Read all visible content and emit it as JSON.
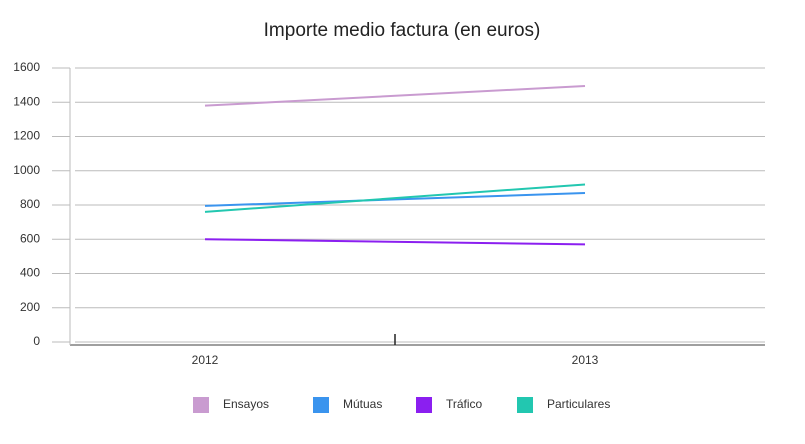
{
  "chart_data": {
    "type": "line",
    "title": "Importe medio factura (en euros)",
    "categories": [
      "2012",
      "2013"
    ],
    "series": [
      {
        "name": "Ensayos",
        "color": "#c99bd0",
        "values": [
          1380,
          1495
        ]
      },
      {
        "name": "Mútuas",
        "color": "#3a94ee",
        "values": [
          795,
          870
        ]
      },
      {
        "name": "Tráfico",
        "color": "#8b1ff0",
        "values": [
          600,
          570
        ]
      },
      {
        "name": "Particulares",
        "color": "#22c7b0",
        "values": [
          760,
          920
        ]
      }
    ],
    "ylim": [
      0,
      1600
    ],
    "yticks": [
      0,
      200,
      400,
      600,
      800,
      1000,
      1200,
      1400,
      1600
    ],
    "grid": true
  }
}
